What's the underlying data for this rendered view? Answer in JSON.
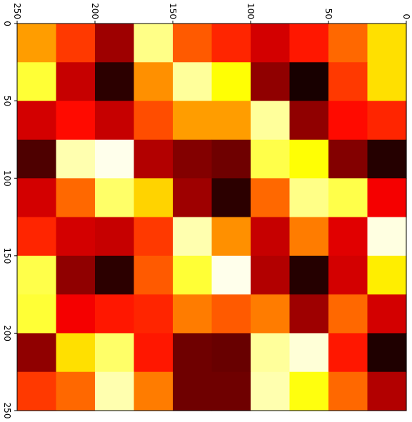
{
  "chart_data": {
    "type": "heatmap",
    "title": "",
    "xlabel": "",
    "ylabel": "",
    "colormap": "hot",
    "orientation": "rotated-90-clockwise",
    "xlim": [
      250,
      0
    ],
    "ylim": [
      0,
      250
    ],
    "x_tick_labels": [
      "0",
      "50",
      "100",
      "150",
      "200",
      "250"
    ],
    "y_tick_labels": [
      "0",
      "50",
      "100",
      "150",
      "200",
      "250"
    ],
    "grid": false,
    "legend": "none",
    "x_tick_values": [
      0,
      50,
      100,
      150,
      200,
      250
    ],
    "y_tick_values": [
      0,
      50,
      100,
      150,
      200,
      250
    ],
    "cell_rows_top_to_bottom": 10,
    "cell_cols_left_to_right": 10,
    "values": [
      [
        0.6,
        0.45,
        0.22,
        0.88,
        0.5,
        0.42,
        0.3,
        0.4,
        0.52,
        0.7
      ],
      [
        0.8,
        0.28,
        0.05,
        0.58,
        0.9,
        0.75,
        0.2,
        0.02,
        0.45,
        0.7
      ],
      [
        0.3,
        0.38,
        0.28,
        0.48,
        0.6,
        0.6,
        0.9,
        0.2,
        0.38,
        0.42
      ],
      [
        0.1,
        0.92,
        0.98,
        0.25,
        0.18,
        0.15,
        0.82,
        0.75,
        0.18,
        0.04
      ],
      [
        0.3,
        0.52,
        0.85,
        0.68,
        0.22,
        0.05,
        0.52,
        0.88,
        0.82,
        0.35
      ],
      [
        0.42,
        0.3,
        0.28,
        0.45,
        0.92,
        0.58,
        0.28,
        0.55,
        0.32,
        0.97
      ],
      [
        0.82,
        0.2,
        0.05,
        0.5,
        0.8,
        0.98,
        0.25,
        0.04,
        0.3,
        0.72
      ],
      [
        0.8,
        0.35,
        0.4,
        0.42,
        0.55,
        0.5,
        0.55,
        0.22,
        0.52,
        0.3
      ],
      [
        0.2,
        0.7,
        0.85,
        0.4,
        0.15,
        0.14,
        0.9,
        0.96,
        0.4,
        0.03
      ],
      [
        0.45,
        0.52,
        0.92,
        0.55,
        0.15,
        0.15,
        0.92,
        0.76,
        0.52,
        0.25
      ]
    ]
  }
}
